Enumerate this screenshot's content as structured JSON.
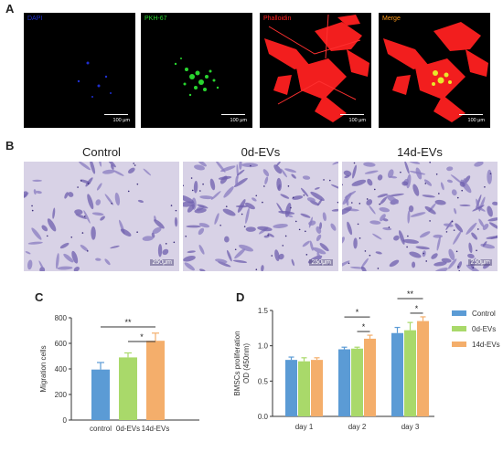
{
  "panel_letters": {
    "a": "A",
    "b": "B",
    "c": "C",
    "d": "D"
  },
  "panel_a": {
    "channels": [
      {
        "label": "DAPI",
        "color": "#1f2fd0",
        "scale": "100 μm"
      },
      {
        "label": "PKH-67",
        "color": "#29d52f",
        "scale": "100 μm"
      },
      {
        "label": "Phalloidin",
        "color": "#ff2020",
        "scale": "100 μm"
      },
      {
        "label": "Merge",
        "color": "#ff9a1a",
        "scale": "100 μm"
      }
    ]
  },
  "panel_b": {
    "images": [
      {
        "title": "Control",
        "scale": "250μm"
      },
      {
        "title": "0d-EVs",
        "scale": "250μm"
      },
      {
        "title": "14d-EVs",
        "scale": "250μm"
      }
    ]
  },
  "colors": {
    "control": "#5b9bd5",
    "ev0": "#a9d96a",
    "ev14": "#f4ae6b"
  },
  "chart_data": [
    {
      "type": "bar",
      "panel": "C",
      "categories": [
        "control",
        "0d-EVs",
        "14d-EVs"
      ],
      "values": [
        395,
        490,
        620
      ],
      "errors": [
        55,
        35,
        60
      ],
      "ylabel": "Migration cells",
      "ylim": [
        0,
        800
      ],
      "yticks": [
        0,
        200,
        400,
        600,
        800
      ],
      "annotations": [
        {
          "from": 0,
          "to": 2,
          "label": "**"
        },
        {
          "from": 1,
          "to": 2,
          "label": "*"
        }
      ]
    },
    {
      "type": "bar",
      "panel": "D",
      "categories": [
        "day 1",
        "day 2",
        "day 3"
      ],
      "ylabel": "BMSCs proliferation\nOD (450nm)",
      "ylim": [
        0,
        1.5
      ],
      "yticks": [
        0.0,
        0.5,
        1.0,
        1.5
      ],
      "legend_position": "right",
      "series": [
        {
          "name": "Control",
          "values": [
            0.8,
            0.95,
            1.18
          ],
          "errors": [
            0.04,
            0.03,
            0.08
          ]
        },
        {
          "name": "0d-EVs",
          "values": [
            0.78,
            0.96,
            1.22
          ],
          "errors": [
            0.05,
            0.02,
            0.11
          ]
        },
        {
          "name": "14d-EVs",
          "values": [
            0.8,
            1.1,
            1.35
          ],
          "errors": [
            0.03,
            0.05,
            0.06
          ]
        }
      ],
      "annotations": [
        {
          "group": 1,
          "from": 0,
          "to": 2,
          "label": "*"
        },
        {
          "group": 1,
          "from": 1,
          "to": 2,
          "label": "*"
        },
        {
          "group": 2,
          "from": 0,
          "to": 2,
          "label": "**"
        },
        {
          "group": 2,
          "from": 1,
          "to": 2,
          "label": "*"
        }
      ]
    }
  ]
}
